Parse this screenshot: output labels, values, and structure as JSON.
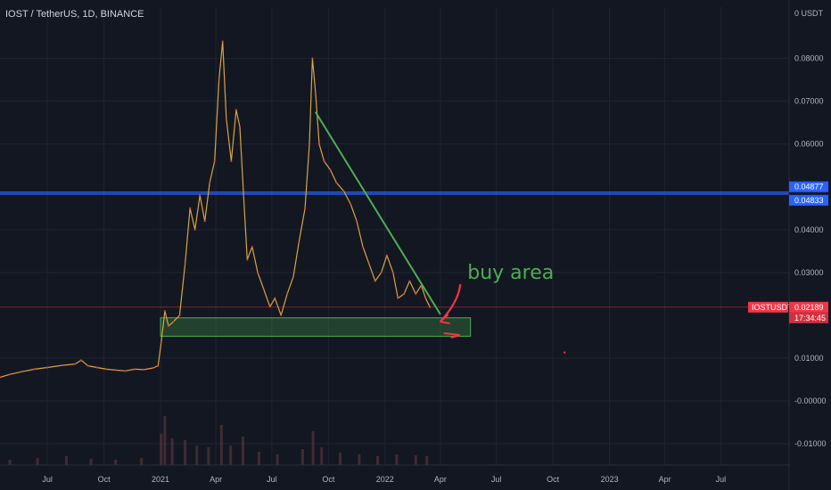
{
  "header": {
    "symbol_title": "IOST / TetherUS, 1D, BINANCE"
  },
  "chart_data": {
    "type": "line",
    "title": "IOST / TetherUS, 1D, BINANCE",
    "xlabel": "",
    "ylabel": "",
    "y_unit_label": "0 USDT",
    "ylim": [
      -0.015,
      0.092
    ],
    "y_ticks": [
      {
        "value": 0.08,
        "label": "0.08000"
      },
      {
        "value": 0.07,
        "label": "0.07000"
      },
      {
        "value": 0.06,
        "label": "0.06000"
      },
      {
        "value": 0.04,
        "label": "0.04000"
      },
      {
        "value": 0.03,
        "label": "0.03000"
      },
      {
        "value": 0.01,
        "label": "0.01000"
      },
      {
        "value": 0.0,
        "label": "-0.00000"
      },
      {
        "value": -0.01,
        "label": "-0.01000"
      }
    ],
    "x_ticks": [
      {
        "date": "2020-07-01",
        "label": "Jul"
      },
      {
        "date": "2020-10-01",
        "label": "Oct"
      },
      {
        "date": "2021-01-01",
        "label": "2021"
      },
      {
        "date": "2021-04-01",
        "label": "Apr"
      },
      {
        "date": "2021-07-01",
        "label": "Jul"
      },
      {
        "date": "2021-10-01",
        "label": "Oct"
      },
      {
        "date": "2022-01-01",
        "label": "2022"
      },
      {
        "date": "2022-04-01",
        "label": "Apr"
      },
      {
        "date": "2022-07-01",
        "label": "Jul"
      },
      {
        "date": "2022-10-01",
        "label": "Oct"
      },
      {
        "date": "2023-01-01",
        "label": "2023"
      },
      {
        "date": "2023-04-01",
        "label": "Apr"
      },
      {
        "date": "2023-07-01",
        "label": "Jul"
      }
    ],
    "xlim": [
      "2020-04-15",
      "2023-10-20"
    ],
    "series": [
      {
        "color": "#d1d4dc",
        "points": [
          [
            "2020-04-15",
            0.0055
          ],
          [
            "2020-05-01",
            0.0062
          ],
          [
            "2020-05-20",
            0.0068
          ],
          [
            "2020-06-10",
            0.0074
          ],
          [
            "2020-07-01",
            0.0078
          ],
          [
            "2020-07-25",
            0.0083
          ],
          [
            "2020-08-15",
            0.0086
          ],
          [
            "2020-08-25",
            0.0095
          ],
          [
            "2020-09-05",
            0.0082
          ],
          [
            "2020-09-20",
            0.0078
          ],
          [
            "2020-10-05",
            0.0074
          ],
          [
            "2020-10-20",
            0.0072
          ],
          [
            "2020-11-05",
            0.007
          ],
          [
            "2020-11-20",
            0.0074
          ],
          [
            "2020-12-05",
            0.0073
          ],
          [
            "2020-12-20",
            0.0077
          ],
          [
            "2020-12-28",
            0.0082
          ],
          [
            "2021-01-02",
            0.0135
          ],
          [
            "2021-01-08",
            0.021
          ],
          [
            "2021-01-14",
            0.0175
          ],
          [
            "2021-01-22",
            0.0185
          ],
          [
            "2021-02-01",
            0.02
          ],
          [
            "2021-02-10",
            0.032
          ],
          [
            "2021-02-18",
            0.045
          ],
          [
            "2021-02-26",
            0.04
          ],
          [
            "2021-03-06",
            0.048
          ],
          [
            "2021-03-14",
            0.042
          ],
          [
            "2021-03-22",
            0.051
          ],
          [
            "2021-03-30",
            0.056
          ],
          [
            "2021-04-06",
            0.075
          ],
          [
            "2021-04-12",
            0.084
          ],
          [
            "2021-04-18",
            0.066
          ],
          [
            "2021-04-26",
            0.056
          ],
          [
            "2021-05-04",
            0.068
          ],
          [
            "2021-05-10",
            0.064
          ],
          [
            "2021-05-16",
            0.048
          ],
          [
            "2021-05-22",
            0.033
          ],
          [
            "2021-05-30",
            0.036
          ],
          [
            "2021-06-08",
            0.03
          ],
          [
            "2021-06-18",
            0.026
          ],
          [
            "2021-06-28",
            0.022
          ],
          [
            "2021-07-06",
            0.024
          ],
          [
            "2021-07-16",
            0.02
          ],
          [
            "2021-07-26",
            0.025
          ],
          [
            "2021-08-05",
            0.029
          ],
          [
            "2021-08-14",
            0.037
          ],
          [
            "2021-08-24",
            0.045
          ],
          [
            "2021-08-31",
            0.06
          ],
          [
            "2021-09-05",
            0.08
          ],
          [
            "2021-09-10",
            0.072
          ],
          [
            "2021-09-16",
            0.06
          ],
          [
            "2021-09-24",
            0.056
          ],
          [
            "2021-10-04",
            0.054
          ],
          [
            "2021-10-14",
            0.051
          ],
          [
            "2021-10-26",
            0.049
          ],
          [
            "2021-11-06",
            0.046
          ],
          [
            "2021-11-16",
            0.042
          ],
          [
            "2021-11-26",
            0.036
          ],
          [
            "2021-12-06",
            0.032
          ],
          [
            "2021-12-16",
            0.028
          ],
          [
            "2021-12-26",
            0.03
          ],
          [
            "2022-01-04",
            0.034
          ],
          [
            "2022-01-14",
            0.03
          ],
          [
            "2022-01-22",
            0.024
          ],
          [
            "2022-02-01",
            0.025
          ],
          [
            "2022-02-10",
            0.028
          ],
          [
            "2022-02-20",
            0.025
          ],
          [
            "2022-03-01",
            0.027
          ],
          [
            "2022-03-08",
            0.024
          ],
          [
            "2022-03-15",
            0.0219
          ]
        ]
      }
    ],
    "horizontal_lines": [
      {
        "value": 0.04877,
        "color": "#2962ff",
        "label": "0.04877"
      },
      {
        "value": 0.04833,
        "color": "#2962ff",
        "label": "0.04833"
      }
    ],
    "last_price": {
      "value": 0.02189,
      "label": "0.02189",
      "symbol": "IOSTUSDT",
      "countdown": "17:34:45",
      "color": "#f23645"
    },
    "buy_zone": {
      "x_start": "2021-01-01",
      "x_end": "2022-05-20",
      "y_low": 0.0151,
      "y_high": 0.0194,
      "color": "#4caf50"
    },
    "trendline": {
      "start": [
        "2021-09-10",
        0.0675
      ],
      "end": [
        "2022-04-01",
        0.0202
      ],
      "color": "#4caf50"
    },
    "annotation": {
      "text": "buy area",
      "x": "2022-05-15",
      "y": 0.0285
    },
    "arrow": {
      "color": "#f23645"
    },
    "stray_marker": {
      "x": "2022-10-20",
      "y": 0.0113,
      "color": "#f23645"
    },
    "volume": {
      "bars": [
        [
          "2020-05-01",
          0.06
        ],
        [
          "2020-06-15",
          0.08
        ],
        [
          "2020-08-01",
          0.1
        ],
        [
          "2020-09-10",
          0.07
        ],
        [
          "2020-10-20",
          0.06
        ],
        [
          "2020-12-01",
          0.08
        ],
        [
          "2021-01-02",
          0.35
        ],
        [
          "2021-01-08",
          0.55
        ],
        [
          "2021-01-20",
          0.3
        ],
        [
          "2021-02-10",
          0.28
        ],
        [
          "2021-03-01",
          0.22
        ],
        [
          "2021-03-20",
          0.2
        ],
        [
          "2021-04-10",
          0.45
        ],
        [
          "2021-04-25",
          0.22
        ],
        [
          "2021-05-15",
          0.32
        ],
        [
          "2021-06-10",
          0.15
        ],
        [
          "2021-07-10",
          0.12
        ],
        [
          "2021-08-20",
          0.18
        ],
        [
          "2021-09-06",
          0.38
        ],
        [
          "2021-09-20",
          0.2
        ],
        [
          "2021-10-20",
          0.14
        ],
        [
          "2021-11-20",
          0.12
        ],
        [
          "2021-12-20",
          0.1
        ],
        [
          "2022-01-20",
          0.12
        ],
        [
          "2022-02-20",
          0.11
        ],
        [
          "2022-03-10",
          0.1
        ]
      ]
    }
  }
}
